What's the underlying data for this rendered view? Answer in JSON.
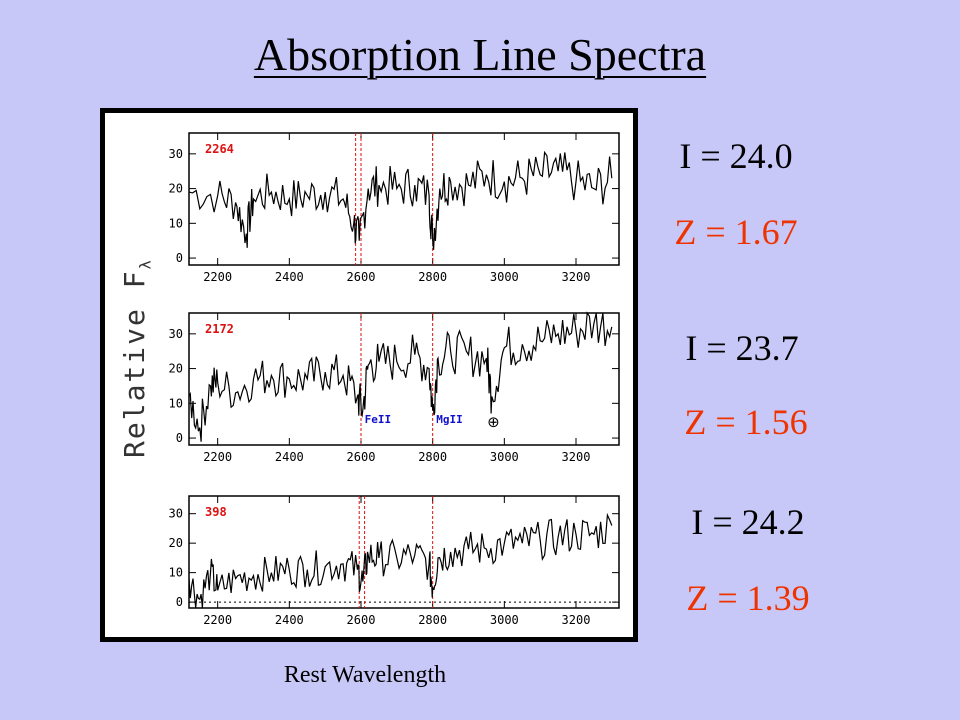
{
  "title": "Absorption Line Spectra",
  "xlabel": "Rest Wavelength",
  "ylabel_main": "Relative F",
  "ylabel_sub": "λ",
  "colors": {
    "background": "#c8c8f8",
    "redshift": "#ee3300",
    "panel_id": "#dd1111",
    "line_marker": "#dd1111",
    "line_label": "#1111cc"
  },
  "annotations": [
    {
      "mag": "I = 24.0",
      "z": "Z = 1.67"
    },
    {
      "mag": "I = 23.7",
      "z": "Z = 1.56"
    },
    {
      "mag": "I = 24.2",
      "z": "Z = 1.39"
    }
  ],
  "chart_data": [
    {
      "type": "line",
      "panel_id": "2264",
      "xlim": [
        2120,
        3320
      ],
      "ylim": [
        -2,
        36
      ],
      "xticks": [
        2200,
        2400,
        2600,
        2800,
        3000,
        3200
      ],
      "yticks": [
        0,
        10,
        20,
        30
      ],
      "marker_lines": [
        2585,
        2600,
        2800
      ],
      "line_labels": [],
      "series": [
        {
          "x": [
            2120,
            2200,
            2250,
            2280,
            2300,
            2350,
            2400,
            2450,
            2500,
            2550,
            2580,
            2595,
            2620,
            2650,
            2700,
            2750,
            2790,
            2800,
            2820,
            2850,
            2900,
            2950,
            3000,
            3050,
            3100,
            3150,
            3200,
            3250,
            3300
          ],
          "y": [
            19,
            18,
            16,
            7,
            17,
            19,
            17,
            18,
            19,
            17,
            10,
            5,
            20,
            21,
            20,
            21,
            18,
            5,
            20,
            22,
            21,
            24,
            22,
            23,
            24,
            25,
            22,
            20,
            23
          ]
        }
      ]
    },
    {
      "type": "line",
      "panel_id": "2172",
      "xlim": [
        2120,
        3320
      ],
      "ylim": [
        -2,
        36
      ],
      "xticks": [
        2200,
        2400,
        2600,
        2800,
        3000,
        3200
      ],
      "yticks": [
        0,
        10,
        20,
        30
      ],
      "marker_lines": [
        2600,
        2800
      ],
      "line_labels": [
        "FeII",
        "MgII",
        "⊕"
      ],
      "series": [
        {
          "x": [
            2120,
            2150,
            2180,
            2200,
            2250,
            2300,
            2350,
            2400,
            2450,
            2500,
            2550,
            2590,
            2605,
            2620,
            2650,
            2700,
            2750,
            2790,
            2800,
            2815,
            2850,
            2900,
            2950,
            2965,
            3000,
            3050,
            3100,
            3150,
            3200,
            3250,
            3300
          ],
          "y": [
            12,
            3,
            15,
            16,
            13,
            17,
            18,
            17,
            17,
            19,
            18,
            12,
            8,
            21,
            22,
            22,
            24,
            20,
            8,
            23,
            25,
            24,
            23,
            12,
            26,
            27,
            28,
            30,
            31,
            33,
            32
          ]
        }
      ]
    },
    {
      "type": "line",
      "panel_id": "398",
      "xlim": [
        2120,
        3320
      ],
      "ylim": [
        -2,
        36
      ],
      "xticks": [
        2200,
        2400,
        2600,
        2800,
        3000,
        3200
      ],
      "yticks": [
        0,
        10,
        20,
        30
      ],
      "marker_lines": [
        2595,
        2610,
        2800
      ],
      "line_labels": [],
      "zero_line": true,
      "series": [
        {
          "x": [
            2120,
            2150,
            2180,
            2200,
            2250,
            2300,
            2350,
            2400,
            2450,
            2500,
            2550,
            2590,
            2605,
            2620,
            2650,
            2700,
            2750,
            2790,
            2800,
            2815,
            2850,
            2900,
            2950,
            3000,
            3050,
            3100,
            3150,
            3200,
            3250,
            3300
          ],
          "y": [
            8,
            1,
            10,
            4,
            8,
            9,
            10,
            11,
            11,
            12,
            13,
            11,
            7,
            16,
            15,
            15,
            16,
            13,
            5,
            15,
            17,
            18,
            18,
            20,
            20,
            21,
            22,
            23,
            23,
            26
          ]
        }
      ]
    }
  ]
}
